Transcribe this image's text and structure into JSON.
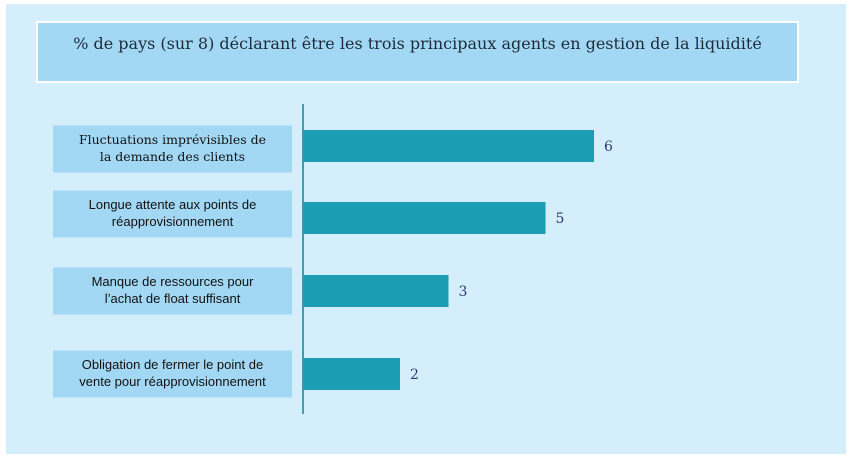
{
  "chart_data": {
    "type": "bar",
    "orientation": "horizontal",
    "title": "% de pays (sur 8) déclarant être les trois principaux agents en gestion de la liquidité",
    "categories": [
      [
        "Fluctuations imprévisibles de",
        "la demande des clients"
      ],
      [
        "Longue attente aux points de",
        "réapprovisionnement"
      ],
      [
        "Manque de ressources pour",
        "l’achat de float suffisant"
      ],
      [
        "Obligation de fermer le point de",
        "vente pour réapprovisionnement"
      ]
    ],
    "values": [
      6,
      5,
      3,
      2
    ],
    "xlim": [
      0,
      8
    ],
    "bar_color": "#1c9db3",
    "label_box_color": "#a3d8f4",
    "axis_color": "#1c7f98",
    "grid": false,
    "legend": false
  }
}
